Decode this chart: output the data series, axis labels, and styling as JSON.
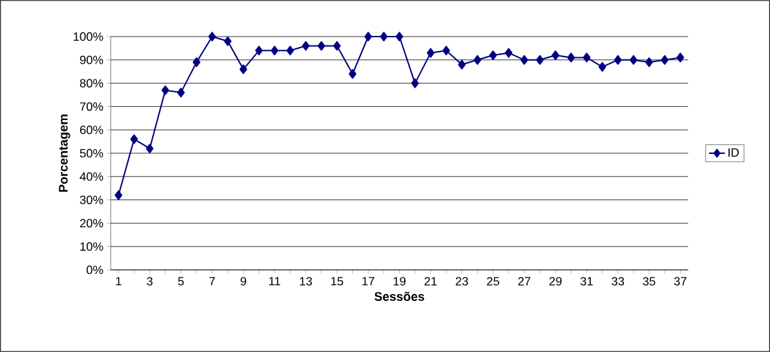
{
  "chart_data": {
    "type": "line",
    "xlabel": "Sessões",
    "ylabel": "Porcentagem",
    "categories": [
      "1",
      null,
      "3",
      null,
      "5",
      null,
      "7",
      null,
      "9",
      null,
      "11",
      null,
      "13",
      null,
      "15",
      null,
      "17",
      null,
      "19",
      null,
      "21",
      null,
      "23",
      null,
      "25",
      null,
      "27",
      null,
      "29",
      null,
      "31",
      null,
      "33",
      null,
      "35",
      null,
      "37"
    ],
    "series": [
      {
        "name": "ID",
        "color": "#000080",
        "values": [
          32,
          56,
          52,
          77,
          76,
          89,
          100,
          98,
          86,
          94,
          94,
          94,
          96,
          96,
          96,
          84,
          100,
          100,
          100,
          80,
          93,
          94,
          88,
          90,
          92,
          93,
          90,
          90,
          92,
          91,
          91,
          87,
          90,
          90,
          89,
          90,
          91
        ]
      }
    ],
    "ylim": [
      0,
      100
    ],
    "yticks": [
      {
        "value": 0,
        "label": "0%"
      },
      {
        "value": 10,
        "label": "10%"
      },
      {
        "value": 20,
        "label": "20%"
      },
      {
        "value": 30,
        "label": "30%"
      },
      {
        "value": 40,
        "label": "40%"
      },
      {
        "value": 50,
        "label": "50%"
      },
      {
        "value": 60,
        "label": "60%"
      },
      {
        "value": 70,
        "label": "70%"
      },
      {
        "value": 80,
        "label": "80%"
      },
      {
        "value": 90,
        "label": "90%"
      },
      {
        "value": 100,
        "label": "100%"
      }
    ],
    "grid": "y",
    "legend": "right",
    "marker": "diamond",
    "line_style": "solid"
  }
}
